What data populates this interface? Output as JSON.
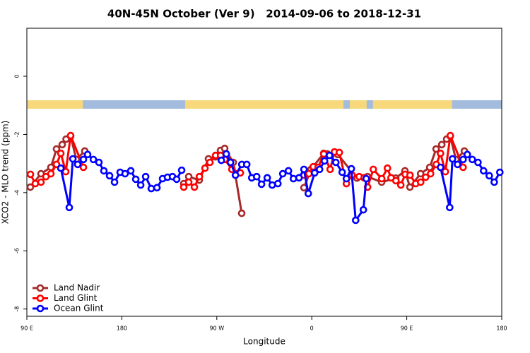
{
  "chart_data": {
    "type": "line",
    "title": "40N-45N October (Ver 9)   2014-09-06 to 2018-12-31",
    "x_label": "Longitude",
    "y_label": "XCO2 - MLO trend (ppm)",
    "xlim": [
      90,
      540
    ],
    "xticks": [
      {
        "value": 90,
        "label": "90 E"
      },
      180,
      {
        "value": 270,
        "label": "90 W"
      },
      {
        "value": 360,
        "label": "0"
      },
      {
        "value": 450,
        "label": "90 E"
      },
      {
        "value": 540,
        "label": "180"
      }
    ],
    "ylim": [
      -8.25,
      1.65
    ],
    "yticks": [
      0,
      -2,
      -4,
      -6,
      -8
    ],
    "land_color": "#f7d97c",
    "ocean_color": "#a3bbdd",
    "land_ranges": [
      [
        90,
        143
      ],
      [
        240,
        390
      ],
      [
        396,
        412
      ],
      [
        418,
        493
      ]
    ],
    "legend": "bottom-left",
    "series": [
      {
        "name": "Land Nadir",
        "color": "#a52a2a",
        "x": [
          93.3,
          103.4,
          112.8,
          118.1,
          123.5,
          127.2,
          131.5,
          136.9,
          144.9,
          null,
          238.7,
          243.4,
          253.4,
          262.1,
          268.8,
          273.5,
          277.5,
          285.6,
          293.6,
          null,
          352.6,
          359.3,
          371.3,
          374.7,
          384.7,
          402.8,
          412.8,
          426.2,
          439.6,
          448.3,
          453.0,
          463.1,
          471.8,
          477.8,
          483.2,
          487.8,
          491.2,
          496.6,
          504.6
        ],
        "values": [
          -3.81,
          -3.35,
          -3.13,
          -2.5,
          -2.35,
          -2.16,
          -2.06,
          -2.86,
          -2.57,
          null,
          -3.69,
          -3.45,
          -3.57,
          -2.84,
          -2.77,
          -2.55,
          -2.48,
          -2.96,
          -4.71,
          null,
          -3.83,
          -3.2,
          -2.65,
          -2.67,
          -2.69,
          -3.5,
          -3.45,
          -3.64,
          -3.5,
          -3.25,
          -3.81,
          -3.35,
          -3.13,
          -2.5,
          -2.35,
          -2.16,
          -2.06,
          -2.86,
          -2.57
        ]
      },
      {
        "name": "Land Glint",
        "color": "#ff0000",
        "x": [
          93.4,
          98.0,
          103.4,
          108.1,
          112.8,
          118.1,
          122.2,
          126.9,
          131.5,
          143.6,
          null,
          238.7,
          243.4,
          248.8,
          253.5,
          258.8,
          263.5,
          268.9,
          273.6,
          277.6,
          284.3,
          292.3,
          null,
          352.6,
          357.3,
          361.4,
          366.0,
          371.4,
          377.4,
          381.5,
          386.1,
          392.8,
          398.2,
          404.9,
          409.6,
          412.9,
          418.3,
          426.3,
          431.7,
          435.1,
          439.7,
          444.4,
          448.5,
          453.1,
          458.5,
          463.2,
          467.9,
          472.6,
          478.0,
          482.0,
          486.6,
          491.3,
          503.4
        ],
        "values": [
          -3.37,
          -3.69,
          -3.64,
          -3.45,
          -3.35,
          -3.03,
          -2.65,
          -3.28,
          -2.04,
          -3.13,
          null,
          -3.81,
          -3.64,
          -3.81,
          -3.45,
          -3.16,
          -2.96,
          -2.72,
          -2.72,
          -2.86,
          -3.2,
          -3.32,
          null,
          -3.4,
          -3.35,
          -3.11,
          -3.13,
          -2.67,
          -3.2,
          -2.6,
          -2.62,
          -3.69,
          -3.4,
          -3.45,
          -3.49,
          -3.81,
          -3.2,
          -3.52,
          -3.16,
          -3.49,
          -3.59,
          -3.74,
          -3.37,
          -3.4,
          -3.69,
          -3.64,
          -3.47,
          -3.35,
          -3.03,
          -2.65,
          -3.28,
          -2.04,
          -3.13
        ]
      },
      {
        "name": "Ocean Glint",
        "color": "#0000ff",
        "x": [
          122.2,
          130.2,
          133.6,
          138.2,
          143.6,
          147.6,
          153.0,
          158.3,
          163.0,
          168.4,
          173.1,
          178.4,
          183.1,
          188.5,
          193.2,
          197.9,
          202.6,
          207.9,
          213.3,
          218.6,
          223.3,
          228.0,
          232.0,
          236.7,
          null,
          274.3,
          279.0,
          283.0,
          287.7,
          293.7,
          298.4,
          303.1,
          307.8,
          312.4,
          317.8,
          322.5,
          327.9,
          332.5,
          337.9,
          342.6,
          347.9,
          352.6,
          356.7,
          362.7,
          367.4,
          372.1,
          376.8,
          382.8,
          388.8,
          392.8,
          397.5,
          401.6,
          408.9,
          411.6,
          null,
          482.0,
          490.7,
          493.3,
          498.1,
          503.4,
          507.4,
          512.1,
          517.5,
          522.8,
          528.2,
          532.9,
          538.2
        ],
        "values": [
          -3.16,
          -4.51,
          -2.84,
          -3.03,
          -2.86,
          -2.69,
          -2.86,
          -2.96,
          -3.25,
          -3.42,
          -3.64,
          -3.3,
          -3.35,
          -3.25,
          -3.54,
          -3.74,
          -3.45,
          -3.86,
          -3.83,
          -3.52,
          -3.47,
          -3.45,
          -3.54,
          -3.23,
          null,
          -2.89,
          -2.67,
          -2.96,
          -3.4,
          -3.03,
          -3.03,
          -3.49,
          -3.45,
          -3.71,
          -3.49,
          -3.74,
          -3.69,
          -3.35,
          -3.25,
          -3.52,
          -3.49,
          -3.2,
          -4.03,
          -3.32,
          -3.2,
          -2.91,
          -2.72,
          -2.96,
          -3.3,
          -3.52,
          -3.18,
          -4.95,
          -4.59,
          -3.52,
          null,
          -3.13,
          -4.51,
          -2.84,
          -3.03,
          -2.86,
          -2.69,
          -2.86,
          -2.96,
          -3.25,
          -3.42,
          -3.64,
          -3.3
        ]
      }
    ]
  }
}
